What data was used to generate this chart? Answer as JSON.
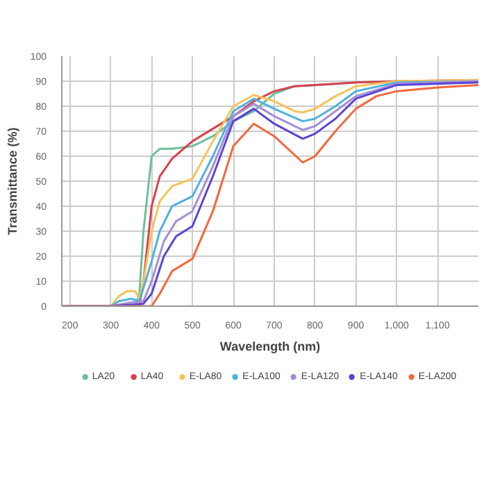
{
  "chart_data": {
    "type": "line",
    "xlabel": "Wavelength (nm)",
    "ylabel": "Transmittance (%)",
    "xlim": [
      180,
      1200
    ],
    "xticks": [
      200,
      300,
      400,
      500,
      600,
      700,
      800,
      900,
      {
        "value": 1000,
        "label": "1,000"
      },
      {
        "value": 1100,
        "label": "1,100"
      }
    ],
    "ylim": [
      0,
      100
    ],
    "yticks": [
      0,
      10,
      20,
      30,
      40,
      50,
      60,
      70,
      80,
      90,
      100
    ],
    "grid": true,
    "legend": "bottom",
    "marker": "none",
    "line_style": "solid",
    "series": [
      {
        "name": "LA20",
        "color": "#6dbf9a",
        "x": [
          180,
          300,
          360,
          370,
          380,
          400,
          420,
          450,
          500,
          550,
          600,
          650,
          700,
          750,
          800,
          900,
          1000,
          1200
        ],
        "values": [
          0,
          0,
          0,
          5,
          30,
          60,
          63,
          63,
          64,
          68,
          74,
          78,
          85,
          88,
          88.5,
          89.5,
          90,
          90
        ]
      },
      {
        "name": "LA40",
        "color": "#d9414f",
        "x": [
          180,
          300,
          370,
          380,
          400,
          420,
          450,
          500,
          550,
          600,
          650,
          700,
          750,
          800,
          900,
          1000,
          1200
        ],
        "values": [
          0,
          0,
          0,
          10,
          40,
          52,
          59,
          66,
          71,
          76,
          82,
          86,
          88,
          88.5,
          89.5,
          90,
          90.5
        ]
      },
      {
        "name": "E-LA80",
        "color": "#f2c45a",
        "x": [
          180,
          300,
          320,
          340,
          360,
          370,
          380,
          400,
          420,
          450,
          500,
          550,
          600,
          650,
          700,
          750,
          770,
          800,
          850,
          900,
          1000,
          1200
        ],
        "values": [
          0,
          0,
          4,
          6,
          6,
          3,
          10,
          30,
          42,
          48,
          51,
          66,
          80,
          84.5,
          82,
          78,
          77.5,
          79,
          84,
          88,
          90,
          90.5
        ]
      },
      {
        "name": "E-LA100",
        "color": "#4fb0e0",
        "x": [
          180,
          300,
          320,
          350,
          370,
          400,
          420,
          450,
          500,
          550,
          600,
          650,
          700,
          770,
          800,
          850,
          900,
          1000,
          1200
        ],
        "values": [
          0,
          0,
          2,
          3,
          2,
          18,
          30,
          40,
          44,
          60,
          78,
          83,
          79,
          74,
          75,
          80,
          86,
          89.5,
          90
        ]
      },
      {
        "name": "E-LA120",
        "color": "#a68ed6",
        "x": [
          180,
          300,
          350,
          380,
          400,
          430,
          460,
          500,
          550,
          600,
          650,
          700,
          770,
          800,
          850,
          900,
          1000,
          1200
        ],
        "values": [
          0,
          0,
          1.5,
          2,
          10,
          26,
          34,
          38,
          56,
          76,
          81,
          76,
          70.5,
          72,
          78,
          84,
          89,
          90
        ]
      },
      {
        "name": "E-LA140",
        "color": "#5a43d6",
        "x": [
          180,
          300,
          380,
          400,
          430,
          460,
          500,
          550,
          600,
          650,
          700,
          770,
          800,
          850,
          900,
          1000,
          1200
        ],
        "values": [
          0,
          0,
          1,
          5,
          20,
          28,
          32,
          52,
          74,
          79,
          73,
          67,
          69,
          75,
          83,
          88.5,
          89.5
        ]
      },
      {
        "name": "E-LA200",
        "color": "#f4683c",
        "x": [
          180,
          300,
          400,
          420,
          450,
          470,
          500,
          550,
          600,
          650,
          700,
          770,
          800,
          850,
          900,
          950,
          1000,
          1100,
          1200
        ],
        "values": [
          0,
          0,
          0,
          5,
          14,
          16,
          19,
          38,
          64,
          73,
          68,
          57.5,
          60,
          70,
          79,
          84,
          86,
          87.5,
          88.5
        ]
      }
    ]
  }
}
